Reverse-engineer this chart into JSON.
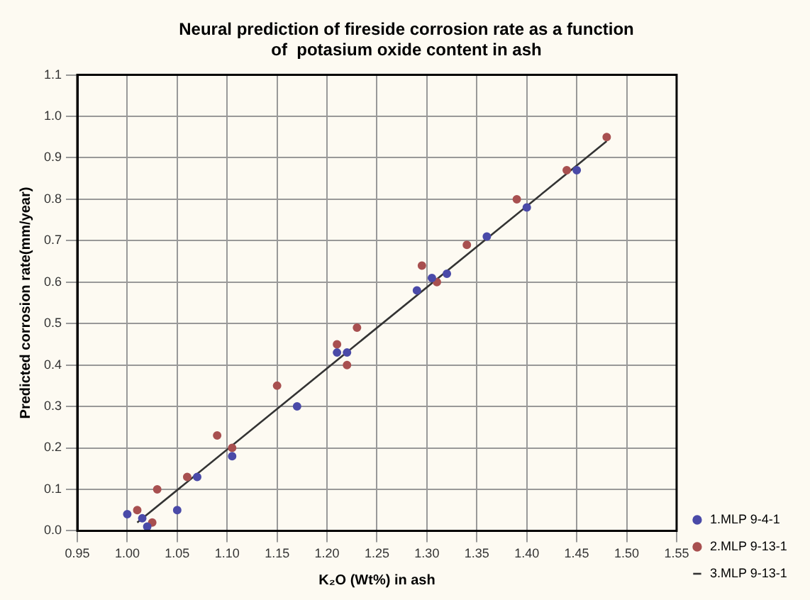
{
  "chart_data": {
    "type": "scatter",
    "title": "Neural prediction of fireside corrosion rate as a function\nof  potasium oxide content in ash",
    "xlabel": "K₂O (Wt%) in ash",
    "ylabel": "Predicted corrosion rate(mm/year)",
    "xlim": [
      0.95,
      1.55
    ],
    "xticks": [
      {
        "value": 0.95,
        "label": "0.95"
      },
      {
        "value": 1,
        "label": "1.00"
      },
      {
        "value": 1.05,
        "label": "1.05"
      },
      {
        "value": 1.1,
        "label": "1.10"
      },
      {
        "value": 1.15,
        "label": "1.15"
      },
      {
        "value": 1.2,
        "label": "1.20"
      },
      {
        "value": 1.25,
        "label": "1.25"
      },
      {
        "value": 1.3,
        "label": "1.30"
      },
      {
        "value": 1.35,
        "label": "1.35"
      },
      {
        "value": 1.4,
        "label": "1.40"
      },
      {
        "value": 1.45,
        "label": "1.45"
      },
      {
        "value": 1.5,
        "label": "1.50"
      },
      {
        "value": 1.55,
        "label": "1.55"
      }
    ],
    "ylim": [
      0,
      1.1
    ],
    "yticks": [
      {
        "value": 0,
        "label": "0.0"
      },
      0.1,
      0.2,
      0.3,
      0.4,
      0.5,
      0.6,
      0.7,
      0.8,
      0.9,
      {
        "value": 1,
        "label": "1.0"
      },
      1.1
    ],
    "grid": true,
    "legend": "bottom right",
    "series": [
      {
        "name": "1.MLP 9-4-1",
        "color": "#4a4aa8",
        "marker": "circle",
        "x": [
          1.0,
          1.015,
          1.02,
          1.05,
          1.07,
          1.105,
          1.17,
          1.21,
          1.22,
          1.29,
          1.305,
          1.32,
          1.36,
          1.4,
          1.45
        ],
        "values": [
          0.04,
          0.03,
          0.01,
          0.05,
          0.13,
          0.18,
          0.3,
          0.43,
          0.43,
          0.58,
          0.61,
          0.62,
          0.71,
          0.78,
          0.87
        ]
      },
      {
        "name": "2.MLP 9-13-1",
        "color": "#a85050",
        "marker": "circle",
        "x": [
          1.01,
          1.025,
          1.03,
          1.06,
          1.09,
          1.105,
          1.15,
          1.21,
          1.22,
          1.23,
          1.295,
          1.31,
          1.34,
          1.39,
          1.44,
          1.48
        ],
        "values": [
          0.05,
          0.02,
          0.1,
          0.13,
          0.23,
          0.2,
          0.35,
          0.45,
          0.4,
          0.49,
          0.64,
          0.6,
          0.69,
          0.8,
          0.87,
          0.95
        ]
      },
      {
        "name": "3.MLP 9-13-1",
        "type": "line",
        "color": "#333333",
        "marker": "none",
        "line_style": "solid",
        "x": [
          1.01,
          1.48
        ],
        "values": [
          0.02,
          0.94
        ]
      }
    ]
  }
}
